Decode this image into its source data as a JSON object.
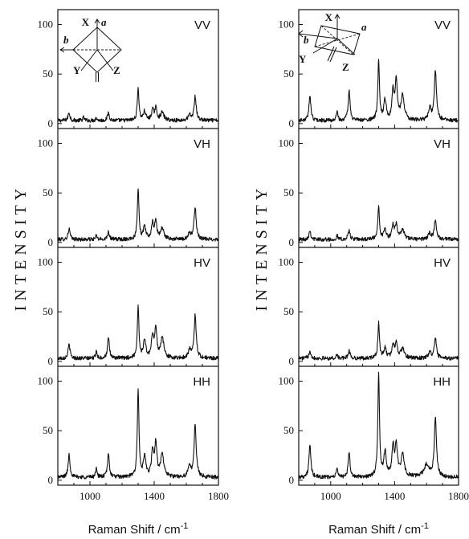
{
  "chart_data": [
    {
      "type": "line",
      "column": "left",
      "xlabel": "Raman Shift / cm",
      "xlabel_sup": "-1",
      "ylabel": "INTENSITY",
      "xlim": [
        800,
        1800
      ],
      "xticks": [
        1000,
        1400,
        1800
      ],
      "ylim": [
        -5,
        115
      ],
      "yticks": [
        0,
        50,
        100
      ],
      "inset_labels": {
        "x": "X",
        "a": "a",
        "b": "b",
        "y": "Y",
        "z": "Z"
      },
      "panels": [
        {
          "label": "VV",
          "baseline": 3,
          "noise": 2,
          "peaks": [
            [
              870,
              8,
              7
            ],
            [
              960,
              3,
              6
            ],
            [
              1040,
              3,
              5
            ],
            [
              1115,
              8,
              7
            ],
            [
              1300,
              33,
              6
            ],
            [
              1340,
              9,
              9
            ],
            [
              1390,
              10,
              8
            ],
            [
              1410,
              12,
              8
            ],
            [
              1450,
              8,
              12
            ],
            [
              1620,
              5,
              10
            ],
            [
              1655,
              24,
              8
            ]
          ]
        },
        {
          "label": "VH",
          "baseline": 3,
          "noise": 2,
          "peaks": [
            [
              870,
              11,
              7
            ],
            [
              1040,
              4,
              5
            ],
            [
              1115,
              8,
              7
            ],
            [
              1300,
              52,
              6
            ],
            [
              1340,
              12,
              9
            ],
            [
              1390,
              15,
              8
            ],
            [
              1410,
              17,
              8
            ],
            [
              1450,
              11,
              12
            ],
            [
              1620,
              6,
              10
            ],
            [
              1655,
              32,
              8
            ]
          ]
        },
        {
          "label": "HV",
          "baseline": 3,
          "noise": 2,
          "peaks": [
            [
              870,
              14,
              7
            ],
            [
              1040,
              8,
              5
            ],
            [
              1115,
              20,
              7
            ],
            [
              1300,
              52,
              6
            ],
            [
              1340,
              18,
              9
            ],
            [
              1390,
              22,
              8
            ],
            [
              1410,
              28,
              8
            ],
            [
              1450,
              20,
              12
            ],
            [
              1620,
              8,
              10
            ],
            [
              1655,
              43,
              8
            ]
          ]
        },
        {
          "label": "HH",
          "baseline": 3,
          "noise": 2,
          "peaks": [
            [
              870,
              23,
              7
            ],
            [
              1040,
              10,
              5
            ],
            [
              1115,
              23,
              7
            ],
            [
              1300,
              89,
              6
            ],
            [
              1340,
              20,
              9
            ],
            [
              1390,
              25,
              8
            ],
            [
              1410,
              33,
              8
            ],
            [
              1450,
              22,
              12
            ],
            [
              1620,
              10,
              10
            ],
            [
              1655,
              53,
              8
            ]
          ]
        }
      ]
    },
    {
      "type": "line",
      "column": "right",
      "xlabel": "Raman Shift / cm",
      "xlabel_sup": "-1",
      "ylabel": "INTENSITY",
      "xlim": [
        800,
        1800
      ],
      "xticks": [
        1000,
        1400,
        1800
      ],
      "ylim": [
        -5,
        115
      ],
      "yticks": [
        0,
        50,
        100
      ],
      "inset_labels": {
        "x": "X",
        "a": "a",
        "b": "b",
        "y": "Y",
        "z": "Z"
      },
      "panels": [
        {
          "label": "VV",
          "baseline": 3,
          "noise": 2,
          "peaks": [
            [
              870,
              25,
              7
            ],
            [
              1040,
              11,
              5
            ],
            [
              1115,
              30,
              7
            ],
            [
              1300,
              60,
              6
            ],
            [
              1340,
              20,
              9
            ],
            [
              1390,
              28,
              8
            ],
            [
              1410,
              38,
              8
            ],
            [
              1450,
              25,
              12
            ],
            [
              1620,
              12,
              10
            ],
            [
              1655,
              50,
              8
            ]
          ]
        },
        {
          "label": "VH",
          "baseline": 3,
          "noise": 2,
          "peaks": [
            [
              870,
              9,
              7
            ],
            [
              1040,
              4,
              5
            ],
            [
              1115,
              9,
              7
            ],
            [
              1300,
              35,
              6
            ],
            [
              1340,
              10,
              9
            ],
            [
              1390,
              13,
              8
            ],
            [
              1410,
              15,
              8
            ],
            [
              1450,
              10,
              12
            ],
            [
              1620,
              6,
              10
            ],
            [
              1655,
              20,
              8
            ]
          ]
        },
        {
          "label": "HV",
          "baseline": 3,
          "noise": 2,
          "peaks": [
            [
              870,
              8,
              7
            ],
            [
              1040,
              4,
              5
            ],
            [
              1115,
              8,
              7
            ],
            [
              1300,
              36,
              6
            ],
            [
              1340,
              10,
              9
            ],
            [
              1390,
              13,
              8
            ],
            [
              1410,
              16,
              8
            ],
            [
              1450,
              10,
              12
            ],
            [
              1620,
              6,
              10
            ],
            [
              1655,
              20,
              8
            ]
          ]
        },
        {
          "label": "HH",
          "baseline": 3,
          "noise": 2,
          "peaks": [
            [
              870,
              32,
              7
            ],
            [
              1040,
              10,
              5
            ],
            [
              1115,
              24,
              7
            ],
            [
              1300,
              105,
              6
            ],
            [
              1340,
              25,
              9
            ],
            [
              1390,
              30,
              8
            ],
            [
              1410,
              32,
              8
            ],
            [
              1450,
              22,
              12
            ],
            [
              1600,
              12,
              20
            ],
            [
              1655,
              60,
              8
            ]
          ]
        }
      ]
    }
  ]
}
